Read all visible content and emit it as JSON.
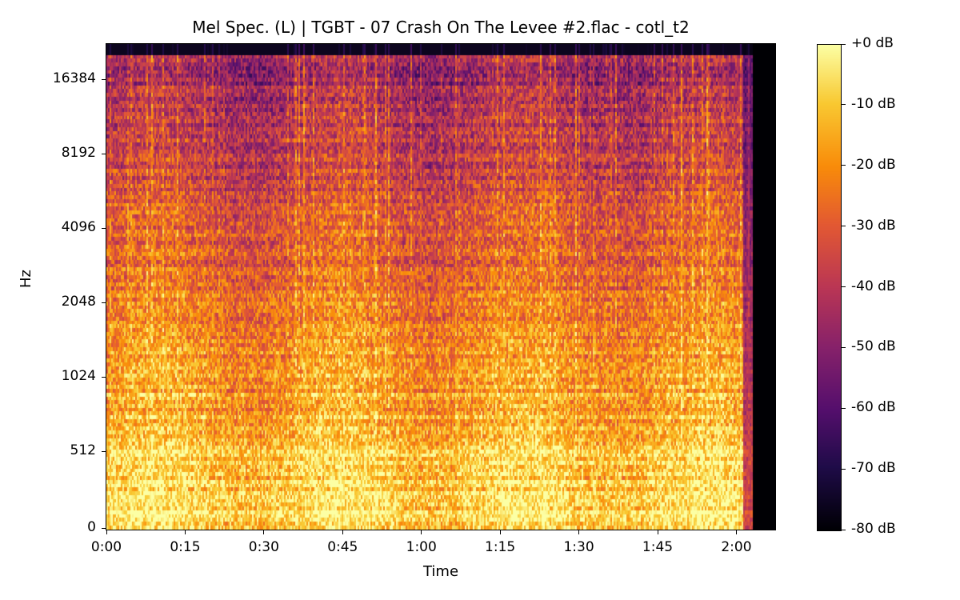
{
  "chart_data": {
    "type": "heatmap",
    "title": "Mel Spec. (L) | TGBT - 07 Crash On The Levee #2.flac - cotl_t2",
    "xlabel": "Time",
    "ylabel": "Hz",
    "x_ticks": [
      "0:00",
      "0:15",
      "0:30",
      "0:45",
      "1:00",
      "1:15",
      "1:30",
      "1:45",
      "2:00"
    ],
    "x_tick_seconds": [
      0,
      15,
      30,
      45,
      60,
      75,
      90,
      105,
      120
    ],
    "xlim_seconds": [
      0,
      127.4
    ],
    "audio_end_seconds": 123,
    "y_scale": "log2-octave (mel-like)",
    "y_ticks": [
      "0",
      "512",
      "1024",
      "2048",
      "4096",
      "8192",
      "16384"
    ],
    "y_tick_hz": [
      0,
      512,
      1024,
      2048,
      4096,
      8192,
      16384
    ],
    "ylim_hz": [
      0,
      22050
    ],
    "colormap": "inferno",
    "colorbar": {
      "ticks": [
        "+0 dB",
        "-10 dB",
        "-20 dB",
        "-30 dB",
        "-40 dB",
        "-50 dB",
        "-60 dB",
        "-70 dB",
        "-80 dB"
      ],
      "range_db": [
        -80,
        0
      ]
    },
    "grid": false
  }
}
